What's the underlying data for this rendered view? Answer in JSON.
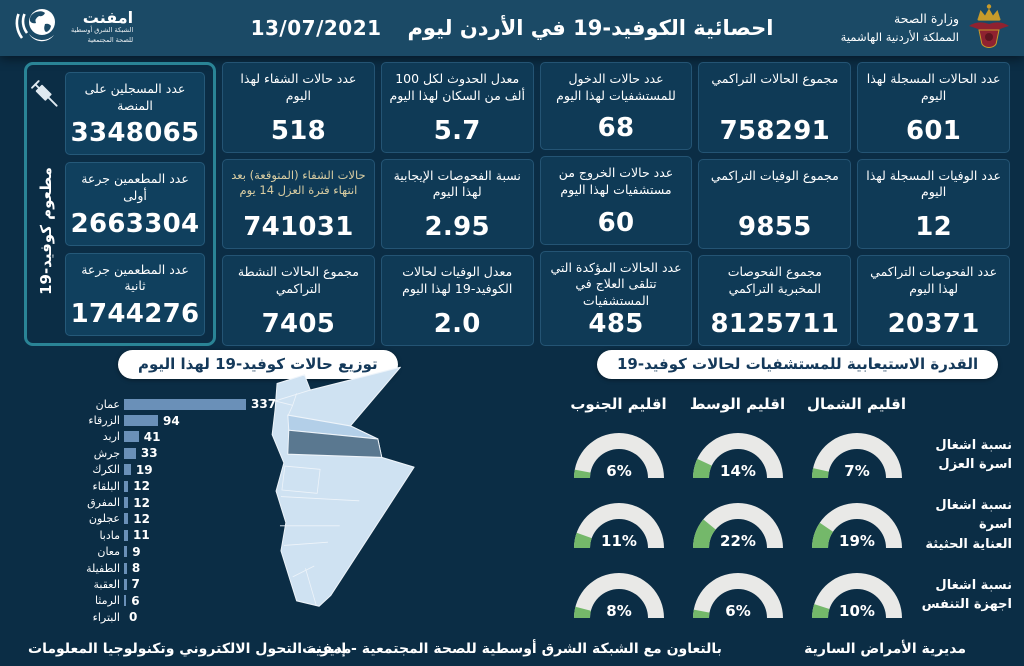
{
  "header": {
    "title": "احصائية الكوفيد-19 في الأردن ليوم",
    "date": "13/07/2021",
    "emphnet": {
      "name": "امفنت",
      "line1": "الشبكة الشرق أوسطية",
      "line2": "للصحة المجتمعية"
    },
    "moh": {
      "line1": "وزارة الصحة",
      "line2": "المملكة الأردنية الهاشمية"
    }
  },
  "icons": {
    "emphnet": "globe-swoosh",
    "moh": "jordan-royal-crest",
    "vaccine": "syringe"
  },
  "stats": {
    "columns": [
      [
        {
          "label": "عدد الحالات المسجلة لهذا اليوم",
          "value": "601"
        },
        {
          "label": "عدد الوفيات المسجلة لهذا اليوم",
          "value": "12"
        },
        {
          "label": "عدد الفحوصات التراكمي لهذا اليوم",
          "value": "20371"
        }
      ],
      [
        {
          "label": "مجموع الحالات التراكمي",
          "value": "758291"
        },
        {
          "label": "مجموع الوفيات التراكمي",
          "value": "9855"
        },
        {
          "label": "مجموع الفحوصات المخبرية التراكمي",
          "value": "8125711"
        }
      ],
      [
        {
          "label": "عدد حالات الدخول للمستشفيات لهذا اليوم",
          "value": "68"
        },
        {
          "label": "عدد حالات الخروج من مستشفيات لهذا اليوم",
          "value": "60"
        },
        {
          "label": "عدد الحالات المؤكدة التي تتلقى العلاج في المستشفيات",
          "value": "485"
        }
      ],
      [
        {
          "label": "معدل الحدوث لكل 100 ألف من السكان لهذا اليوم",
          "value": "5.7"
        },
        {
          "label": "نسبة الفحوصات الإيجابية لهذا اليوم",
          "value": "2.95"
        },
        {
          "label": "معدل الوفيات لحالات الكوفيد-19 لهذا اليوم",
          "value": "2.0"
        }
      ],
      [
        {
          "label": "عدد حالات الشفاء لهذا اليوم",
          "value": "518"
        },
        {
          "label": "حالات الشفاء (المتوقعة) بعد انتهاء فترة العزل 14 يوم",
          "value": "741031",
          "accent": true
        },
        {
          "label": "مجموع الحالات النشطة التراكمي",
          "value": "7405"
        }
      ]
    ],
    "vaccine": {
      "side_label": "مطعوم كوفيد-19",
      "cards": [
        {
          "label": "عدد المسجلين على المنصة",
          "value": "3348065"
        },
        {
          "label": "عدد المطعمين جرعة أولى",
          "value": "2663304"
        },
        {
          "label": "عدد المطعمين جرعة ثانية",
          "value": "1744276"
        }
      ]
    }
  },
  "chart_data": [
    {
      "type": "bar",
      "orientation": "horizontal",
      "title": "توزيع حالات كوفيد-19 لهذا اليوم",
      "categories": [
        "عمان",
        "الزرقاء",
        "اربد",
        "جرش",
        "الكرك",
        "البلقاء",
        "المفرق",
        "عجلون",
        "مادبا",
        "معان",
        "الطفيلة",
        "العقبة",
        "الرمثا",
        "البتراء"
      ],
      "values": [
        337,
        94,
        41,
        33,
        19,
        12,
        12,
        12,
        11,
        9,
        8,
        7,
        6,
        0
      ],
      "xlim": [
        0,
        337
      ],
      "bar_color": "#6a90b8"
    },
    {
      "type": "gauge-grid",
      "title": "القدرة الاستيعابية للمستشفيات لحالات كوفيد-19",
      "columns": [
        "اقليم الشمال",
        "اقليم الوسط",
        "اقليم الجنوب"
      ],
      "rows": [
        {
          "label": "نسبة اشغال اسرة العزل",
          "label_lines": [
            "نسبة اشغال",
            "اسرة العزل"
          ],
          "values": [
            7,
            14,
            6
          ]
        },
        {
          "label": "نسبة اشغال اسرة العناية الحثيثة",
          "label_lines": [
            "نسبة اشغال اسرة",
            "العناية الحثيثة"
          ],
          "values": [
            19,
            22,
            11
          ]
        },
        {
          "label": "نسبة اشغال اجهزة التنفس",
          "label_lines": [
            "نسبة اشغال",
            "اجهزة التنفس"
          ],
          "values": [
            10,
            6,
            8
          ]
        }
      ],
      "unit": "%",
      "range": [
        0,
        100
      ],
      "track_color": "#e9e9e7",
      "fill_color": "#74b86a"
    }
  ],
  "map": {
    "base": "#cfe2f2",
    "band": "#b3cfe8",
    "highlight": "#5a7890",
    "stroke": "#eef4fa"
  },
  "footer": {
    "right": "مديرية الأمراض السارية",
    "center": "بالتعاون مع الشبكة الشرق أوسطية للصحة المجتمعية - إمفنت",
    "left": "مديرية التحول الالكتروني وتكنولوجيا المعلومات"
  }
}
